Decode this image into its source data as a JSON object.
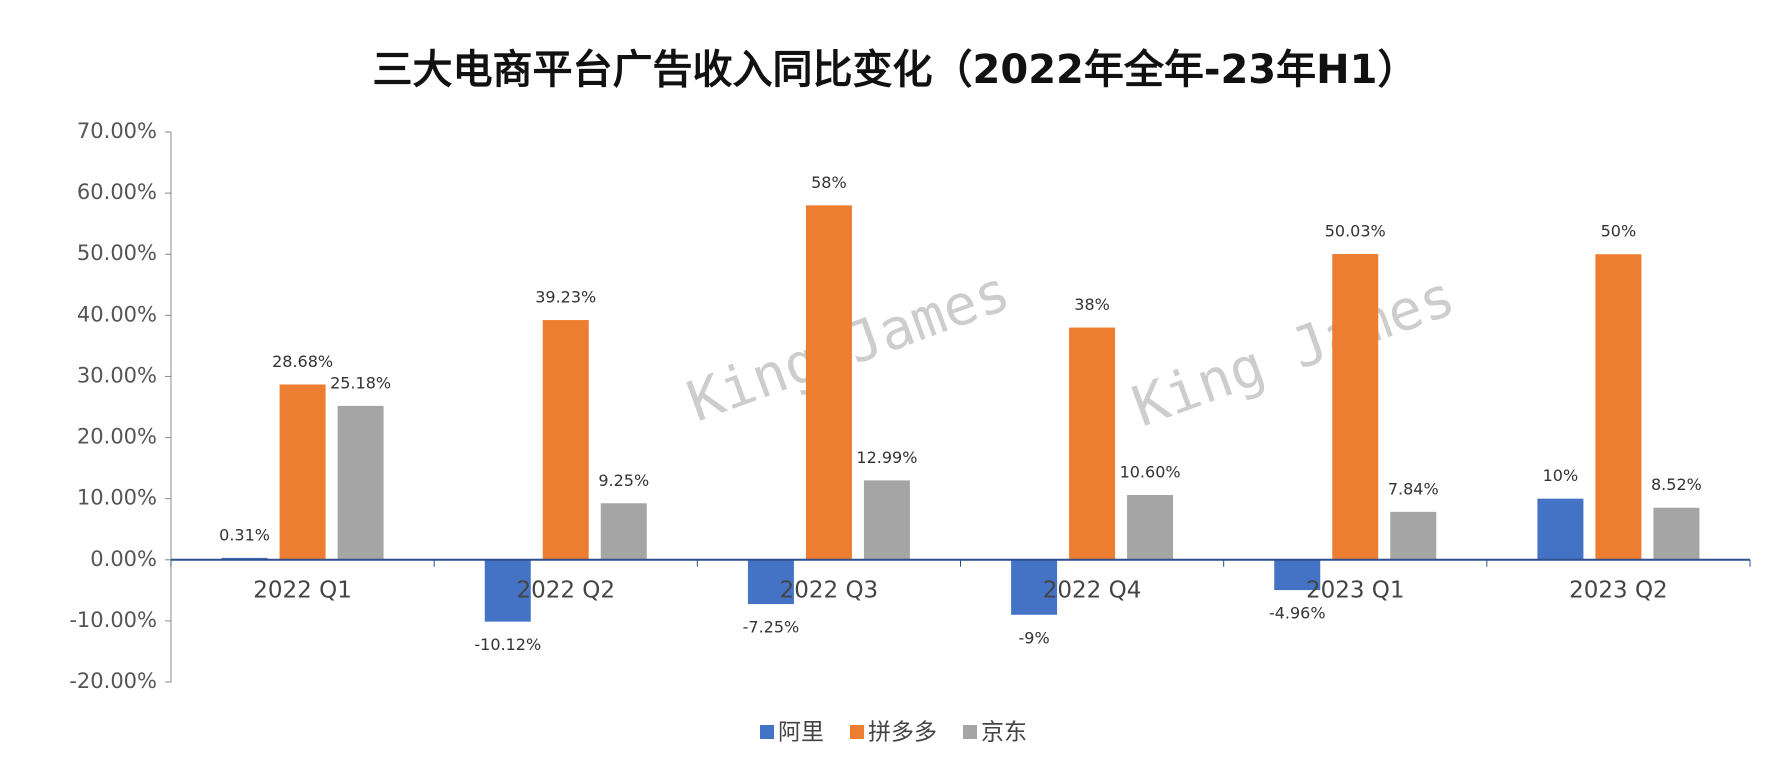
{
  "chart_data": {
    "type": "bar",
    "title": "三大电商平台广告收入同比变化（2022年全年-23年H1）",
    "watermark": "King James",
    "categories": [
      "2022 Q1",
      "2022 Q2",
      "2022 Q3",
      "2022 Q4",
      "2023 Q1",
      "2023 Q2"
    ],
    "series": [
      {
        "name": "阿里",
        "color": "#4472c4",
        "values": [
          0.31,
          -10.12,
          -7.25,
          -9,
          -4.96,
          10
        ],
        "value_labels": [
          "0.31%",
          "-10.12%",
          "-7.25%",
          "-9%",
          "-4.96%",
          "10%"
        ]
      },
      {
        "name": "拼多多",
        "color": "#ed7d31",
        "values": [
          28.68,
          39.23,
          58,
          38,
          50.03,
          50
        ],
        "value_labels": [
          "28.68%",
          "39.23%",
          "58%",
          "38%",
          "50.03%",
          "50%"
        ]
      },
      {
        "name": "京东",
        "color": "#a5a5a5",
        "values": [
          25.18,
          9.25,
          12.99,
          10.6,
          7.84,
          8.52
        ],
        "value_labels": [
          "25.18%",
          "9.25%",
          "12.99%",
          "10.60%",
          "7.84%",
          "8.52%"
        ]
      }
    ],
    "ylim": [
      -20,
      70
    ],
    "yticks": [
      {
        "value": -20,
        "label": "-20.00%"
      },
      {
        "value": -10,
        "label": "-10.00%"
      },
      {
        "value": 0,
        "label": "0.00%"
      },
      {
        "value": 10,
        "label": "10.00%"
      },
      {
        "value": 20,
        "label": "20.00%"
      },
      {
        "value": 30,
        "label": "30.00%"
      },
      {
        "value": 40,
        "label": "40.00%"
      },
      {
        "value": 50,
        "label": "50.00%"
      },
      {
        "value": 60,
        "label": "60.00%"
      },
      {
        "value": 70,
        "label": "70.00%"
      }
    ],
    "grid": false,
    "legend": "bottom"
  }
}
